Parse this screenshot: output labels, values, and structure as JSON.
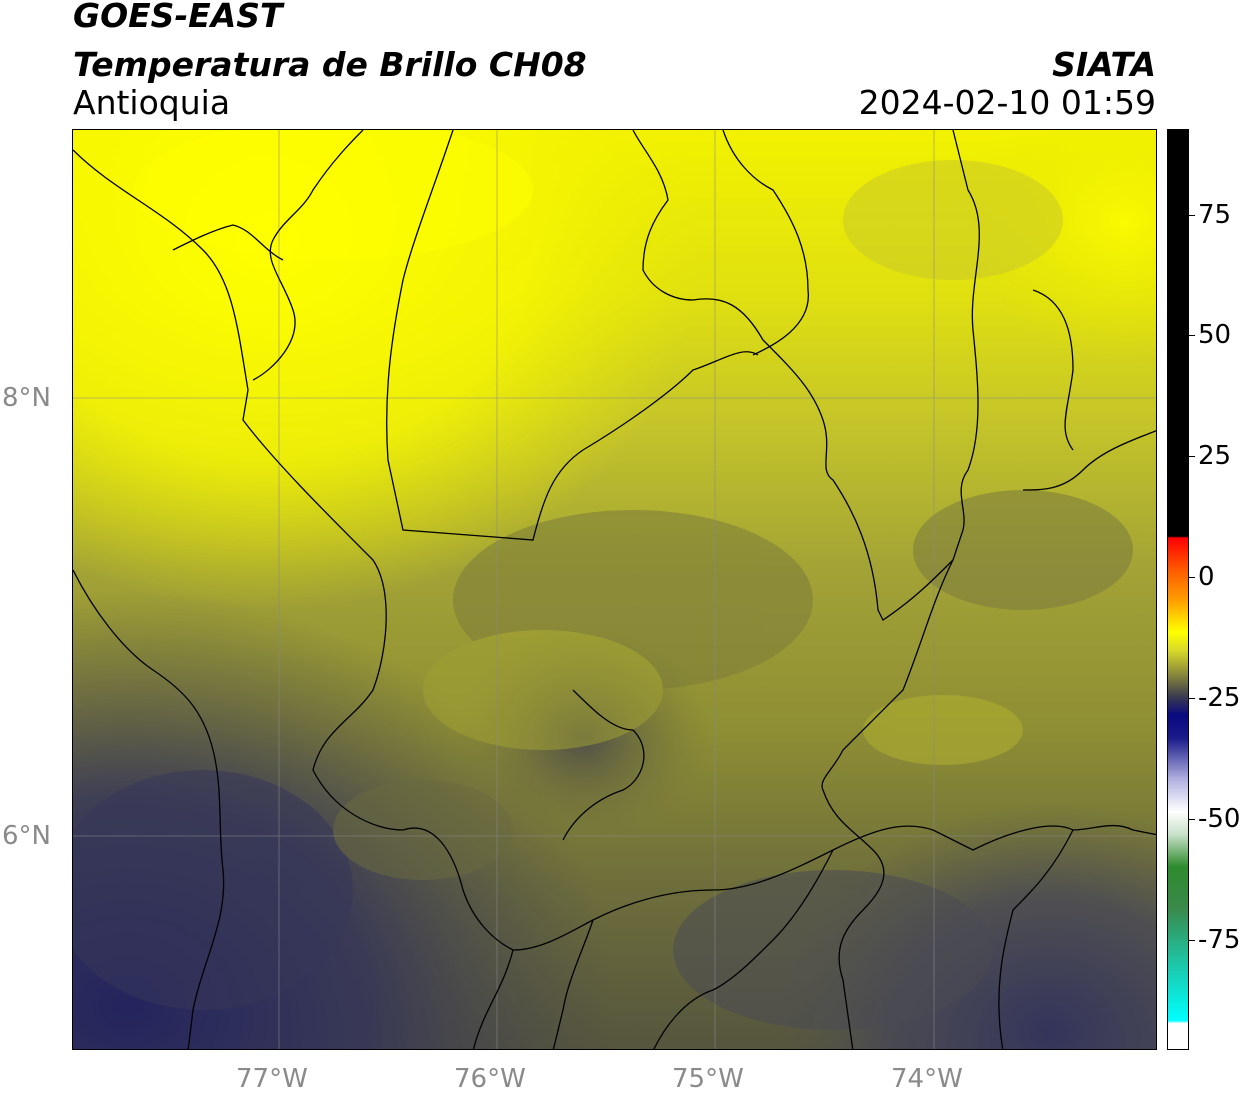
{
  "header": {
    "satellite": "GOES-EAST",
    "product": "Temperatura de Brillo CH08",
    "region": "Antioquia",
    "agency": "SIATA",
    "datetime": "2024-02-10 01:59"
  },
  "axes": {
    "lon_labels": [
      "77°W",
      "76°W",
      "75°W",
      "74°W"
    ],
    "lat_labels": [
      "8°N",
      "6°N"
    ]
  },
  "colorbar": {
    "ticks": [
      "75",
      "50",
      "25",
      "0",
      "-25",
      "-50",
      "-75"
    ],
    "colors": {
      "black": "#000000",
      "red": "#ff0000",
      "orange": "#ff8c00",
      "yellow": "#ffff00",
      "olive": "#8c8c3a",
      "slate": "#3c3c50",
      "navy": "#0a0a80",
      "white": "#ffffff",
      "green": "#2e8b2e",
      "teal": "#20c0a0",
      "cyan": "#00ffff"
    }
  },
  "map": {
    "colors": {
      "bright_yellow": "#ffff00",
      "yellow": "#e8e800",
      "olive_light": "#c8c830",
      "olive": "#9c9c32",
      "olive_dark": "#76763a",
      "slate": "#4a4a4e",
      "navy": "#2c2c5e",
      "border": "#000000",
      "grid": "#888888"
    }
  }
}
